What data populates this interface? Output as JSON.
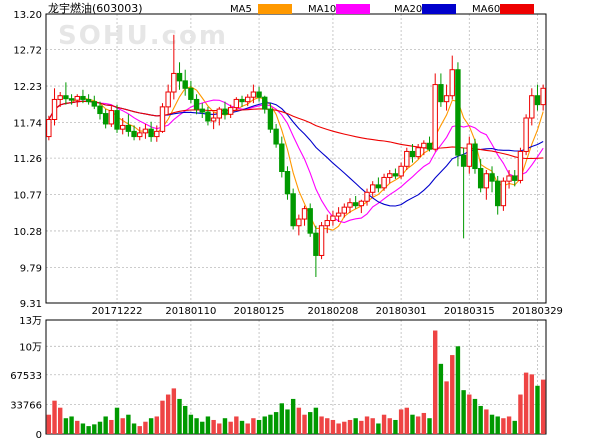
{
  "chart_data": {
    "type": "candlestick",
    "title": "龙宇燃油(603003)",
    "watermark": "SOHU.com",
    "legend": [
      {
        "name": "MA5",
        "color": "#FF9900"
      },
      {
        "name": "MA10",
        "color": "#FF00FF"
      },
      {
        "name": "MA20",
        "color": "#0000CC"
      },
      {
        "name": "MA60",
        "color": "#EE0000"
      }
    ],
    "colors": {
      "up": "#EE0000",
      "down": "#009900",
      "volume_up": "#EE4444",
      "volume_down": "#009900"
    },
    "price_axis": {
      "ticks": [
        "13.20",
        "12.72",
        "12.23",
        "11.74",
        "11.26",
        "10.77",
        "10.28",
        "9.79",
        "9.31"
      ],
      "ylim": [
        9.31,
        13.2
      ]
    },
    "volume_axis": {
      "ticks": [
        "13万",
        "10万",
        "67533",
        "33766",
        "0"
      ],
      "ylim": [
        0,
        130000
      ]
    },
    "date_labels": [
      {
        "label": "20171222",
        "index": 12
      },
      {
        "label": "20180110",
        "index": 25
      },
      {
        "label": "20180125",
        "index": 37
      },
      {
        "label": "20180208",
        "index": 50
      },
      {
        "label": "20180301",
        "index": 62
      },
      {
        "label": "20180315",
        "index": 74
      },
      {
        "label": "20180329",
        "index": 86
      }
    ],
    "candles": [
      [
        11.55,
        11.83,
        11.5,
        11.78,
        22000
      ],
      [
        11.78,
        12.2,
        11.7,
        12.05,
        38000
      ],
      [
        12.05,
        12.15,
        11.95,
        12.1,
        30000
      ],
      [
        12.1,
        12.28,
        11.98,
        12.06,
        18000
      ],
      [
        12.06,
        12.12,
        11.98,
        12.04,
        20000
      ],
      [
        12.04,
        12.12,
        11.95,
        12.09,
        15000
      ],
      [
        12.09,
        12.18,
        12.0,
        12.05,
        12000
      ],
      [
        12.05,
        12.12,
        11.98,
        12.02,
        9000
      ],
      [
        12.02,
        12.1,
        11.92,
        11.96,
        11000
      ],
      [
        11.96,
        12.02,
        11.78,
        11.86,
        14000
      ],
      [
        11.86,
        11.92,
        11.66,
        11.72,
        20000
      ],
      [
        11.72,
        11.96,
        11.68,
        11.9,
        16000
      ],
      [
        11.9,
        11.98,
        11.6,
        11.65,
        30000
      ],
      [
        11.65,
        11.8,
        11.58,
        11.7,
        18000
      ],
      [
        11.7,
        11.85,
        11.55,
        11.62,
        22000
      ],
      [
        11.62,
        11.7,
        11.5,
        11.55,
        12000
      ],
      [
        11.55,
        11.68,
        11.5,
        11.6,
        9000
      ],
      [
        11.6,
        11.72,
        11.52,
        11.65,
        14000
      ],
      [
        11.65,
        11.75,
        11.48,
        11.55,
        18000
      ],
      [
        11.55,
        11.7,
        11.48,
        11.62,
        20000
      ],
      [
        11.62,
        12.0,
        11.6,
        11.95,
        38000
      ],
      [
        11.95,
        12.25,
        11.85,
        12.15,
        45000
      ],
      [
        12.15,
        12.92,
        12.05,
        12.4,
        52000
      ],
      [
        12.4,
        12.55,
        12.18,
        12.3,
        40000
      ],
      [
        12.3,
        12.45,
        12.1,
        12.2,
        32000
      ],
      [
        12.2,
        12.3,
        12.0,
        12.05,
        22000
      ],
      [
        12.05,
        12.12,
        11.85,
        11.92,
        18000
      ],
      [
        11.92,
        12.0,
        11.8,
        11.88,
        14000
      ],
      [
        11.88,
        11.95,
        11.7,
        11.76,
        20000
      ],
      [
        11.76,
        11.88,
        11.65,
        11.8,
        16000
      ],
      [
        11.8,
        11.95,
        11.7,
        11.92,
        12000
      ],
      [
        11.92,
        12.02,
        11.78,
        11.85,
        18000
      ],
      [
        11.85,
        11.98,
        11.8,
        11.94,
        14000
      ],
      [
        11.94,
        12.08,
        11.9,
        12.05,
        20000
      ],
      [
        12.05,
        12.1,
        11.95,
        12.02,
        15000
      ],
      [
        12.02,
        12.12,
        11.96,
        12.08,
        12000
      ],
      [
        12.08,
        12.25,
        12.0,
        12.15,
        18000
      ],
      [
        12.15,
        12.22,
        12.02,
        12.08,
        16000
      ],
      [
        12.08,
        12.1,
        11.86,
        11.92,
        20000
      ],
      [
        11.92,
        12.0,
        11.6,
        11.65,
        22000
      ],
      [
        11.65,
        11.72,
        11.4,
        11.45,
        25000
      ],
      [
        11.45,
        11.55,
        11.0,
        11.08,
        35000
      ],
      [
        11.08,
        11.15,
        10.7,
        10.78,
        28000
      ],
      [
        10.78,
        10.85,
        10.3,
        10.35,
        40000
      ],
      [
        10.35,
        10.5,
        10.22,
        10.44,
        30000
      ],
      [
        10.44,
        10.62,
        10.35,
        10.58,
        22000
      ],
      [
        10.58,
        10.65,
        10.2,
        10.25,
        25000
      ],
      [
        10.25,
        10.35,
        9.66,
        9.95,
        30000
      ],
      [
        9.95,
        10.4,
        9.9,
        10.35,
        20000
      ],
      [
        10.35,
        10.5,
        10.25,
        10.42,
        18000
      ],
      [
        10.42,
        10.55,
        10.35,
        10.48,
        16000
      ],
      [
        10.48,
        10.6,
        10.4,
        10.52,
        12000
      ],
      [
        10.52,
        10.65,
        10.46,
        10.6,
        14000
      ],
      [
        10.6,
        10.72,
        10.52,
        10.66,
        16000
      ],
      [
        10.66,
        10.75,
        10.58,
        10.62,
        18000
      ],
      [
        10.62,
        10.7,
        10.52,
        10.68,
        15000
      ],
      [
        10.68,
        10.85,
        10.62,
        10.8,
        20000
      ],
      [
        10.8,
        10.95,
        10.74,
        10.9,
        18000
      ],
      [
        10.9,
        11.0,
        10.8,
        10.86,
        12000
      ],
      [
        10.86,
        11.05,
        10.82,
        11.0,
        22000
      ],
      [
        11.0,
        11.1,
        10.92,
        11.05,
        18000
      ],
      [
        11.05,
        11.12,
        10.98,
        11.02,
        16000
      ],
      [
        11.02,
        11.2,
        10.98,
        11.15,
        28000
      ],
      [
        11.15,
        11.4,
        11.1,
        11.35,
        30000
      ],
      [
        11.35,
        11.45,
        11.2,
        11.28,
        22000
      ],
      [
        11.28,
        11.45,
        11.25,
        11.4,
        20000
      ],
      [
        11.4,
        11.5,
        11.3,
        11.46,
        24000
      ],
      [
        11.46,
        11.55,
        11.35,
        11.38,
        18000
      ],
      [
        11.38,
        12.4,
        11.35,
        12.25,
        118000
      ],
      [
        12.25,
        12.4,
        11.95,
        12.02,
        80000
      ],
      [
        12.02,
        12.25,
        11.9,
        12.1,
        60000
      ],
      [
        12.1,
        12.64,
        12.05,
        12.45,
        90000
      ],
      [
        12.45,
        12.55,
        11.15,
        11.3,
        100000
      ],
      [
        11.3,
        11.4,
        10.18,
        11.15,
        50000
      ],
      [
        11.15,
        11.55,
        11.05,
        11.45,
        45000
      ],
      [
        11.45,
        11.52,
        11.05,
        11.12,
        40000
      ],
      [
        11.12,
        11.25,
        10.8,
        10.86,
        32000
      ],
      [
        10.86,
        11.1,
        10.7,
        11.05,
        28000
      ],
      [
        11.05,
        11.15,
        10.8,
        10.95,
        22000
      ],
      [
        10.95,
        11.02,
        10.5,
        10.62,
        20000
      ],
      [
        10.62,
        11.0,
        10.55,
        10.95,
        18000
      ],
      [
        10.95,
        11.1,
        10.85,
        11.02,
        20000
      ],
      [
        11.02,
        11.1,
        10.88,
        10.96,
        15000
      ],
      [
        10.96,
        11.4,
        10.92,
        11.35,
        45000
      ],
      [
        11.35,
        11.85,
        11.3,
        11.8,
        70000
      ],
      [
        11.8,
        12.2,
        11.7,
        12.1,
        68000
      ],
      [
        12.1,
        12.25,
        11.9,
        11.98,
        55000
      ],
      [
        11.98,
        12.25,
        11.9,
        12.2,
        62000
      ]
    ]
  }
}
